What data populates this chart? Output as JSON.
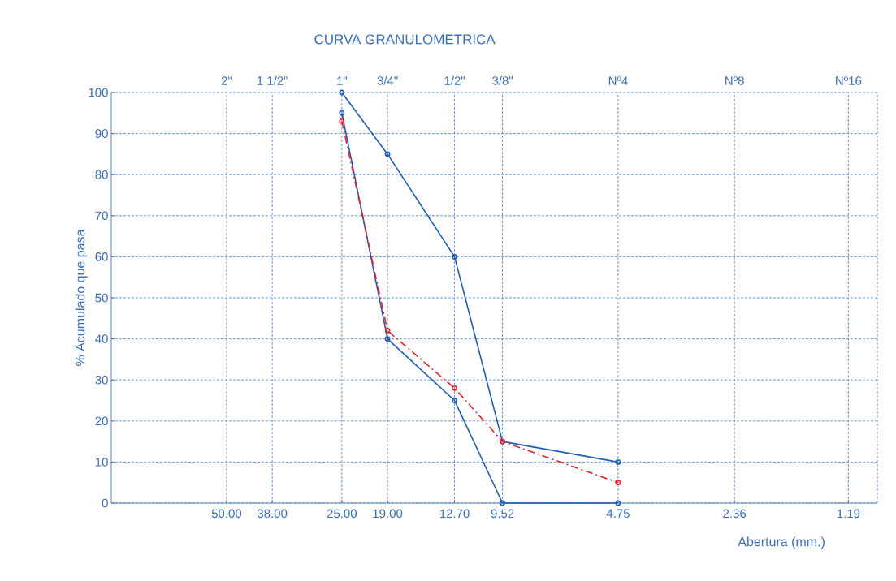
{
  "chart_data": {
    "type": "line",
    "title": "CURVA GRANULOMETRICA",
    "xlabel": "Abertura (mm.)",
    "ylabel": "% Acumulado que pasa",
    "log": "x",
    "grid": true,
    "marker": "circle",
    "xlim": [
      100,
      1
    ],
    "ylim": [
      0,
      100
    ],
    "xticks": [
      {
        "value": 50,
        "label": "50.00"
      },
      {
        "value": 38,
        "label": "38.00"
      },
      {
        "value": 25,
        "label": "25.00"
      },
      {
        "value": 19,
        "label": "19.00"
      },
      {
        "value": 12.7,
        "label": "12.70"
      },
      {
        "value": 9.52,
        "label": "9.52"
      },
      {
        "value": 4.75,
        "label": "4.75"
      },
      {
        "value": 2.36,
        "label": "2.36"
      },
      {
        "value": 1.19,
        "label": "1.19"
      }
    ],
    "yticks": [
      0,
      10,
      20,
      30,
      40,
      50,
      60,
      70,
      80,
      90,
      100
    ],
    "annotations": [
      "2\"",
      "1 1/2\"",
      "1\"",
      "3/4\"",
      "1/2\"",
      "3/8\"",
      "Nº4",
      "Nº8",
      "Nº16"
    ],
    "x": [
      25,
      19,
      12.7,
      9.52,
      4.75
    ],
    "series": [
      {
        "color": "#1f5bb0",
        "values": [
          100,
          85,
          60,
          15,
          10
        ],
        "line_style": "solid"
      },
      {
        "color": "#1f5bb0",
        "values": [
          95,
          40,
          25,
          0,
          0
        ],
        "line_style": "solid"
      },
      {
        "color": "#e8202a",
        "values": [
          93,
          42,
          28,
          15,
          5
        ],
        "line_style": "dashdot"
      }
    ]
  }
}
